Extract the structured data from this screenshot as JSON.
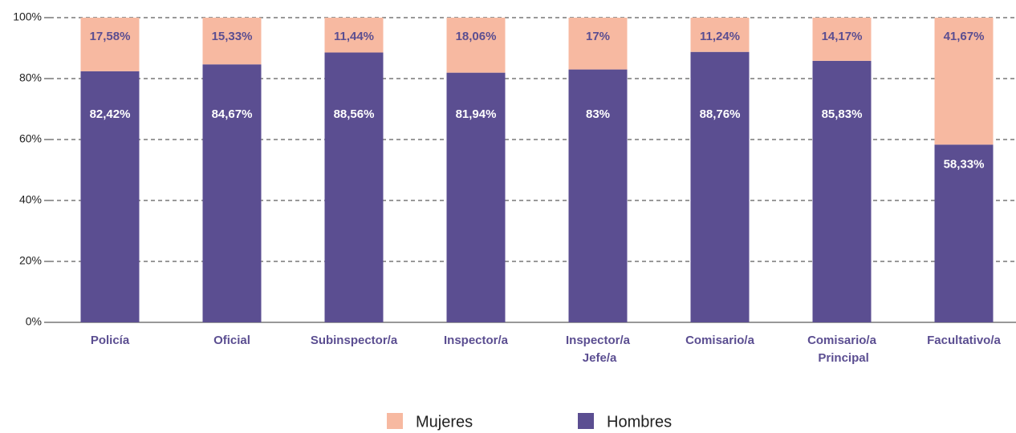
{
  "chart_data": {
    "type": "stacked_bar",
    "categories": [
      "Policía",
      "Oficial",
      "Subinspector/a",
      "Inspector/a",
      "Inspector/a Jefe/a",
      "Comisario/a",
      "Comisario/a Principal",
      "Facultativo/a"
    ],
    "series": [
      {
        "name": "Hombres",
        "color": "#5b4e91",
        "values": [
          82.42,
          84.67,
          88.56,
          81.94,
          83,
          88.76,
          85.83,
          58.33
        ],
        "value_labels": [
          "82,42%",
          "84,67%",
          "88,56%",
          "81,94%",
          "83%",
          "88,76%",
          "85,83%",
          "58,33%"
        ]
      },
      {
        "name": "Mujeres",
        "color": "#f7b9a1",
        "values": [
          17.58,
          15.33,
          11.44,
          18.06,
          17,
          11.24,
          14.17,
          41.67
        ],
        "value_labels": [
          "17,58%",
          "15,33%",
          "11,44%",
          "18,06%",
          "17%",
          "11,24%",
          "14,17%",
          "41,67%"
        ]
      }
    ],
    "ylim": [
      0,
      100
    ],
    "yticks": [
      {
        "value": 0,
        "label": "0%"
      },
      {
        "value": 20,
        "label": "20%"
      },
      {
        "value": 40,
        "label": "40%"
      },
      {
        "value": 60,
        "label": "60%"
      },
      {
        "value": 80,
        "label": "80%"
      },
      {
        "value": 100,
        "label": "100%"
      }
    ],
    "grid": true,
    "legend": "bottom"
  }
}
